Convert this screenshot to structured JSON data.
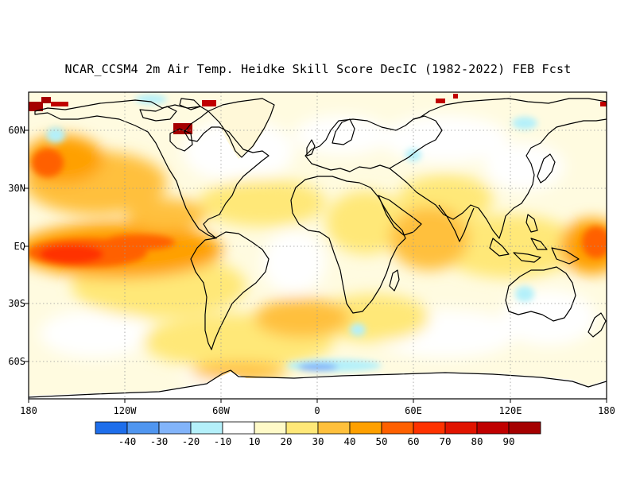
{
  "title": "NCAR_CCSM4 2m Air Temp. Heidke Skill Score DecIC (1982-2022) FEB Fcst",
  "map": {
    "lat_labels": [
      "60N",
      "30N",
      "EQ",
      "30S",
      "60S"
    ],
    "lon_labels": [
      "180",
      "120W",
      "60W",
      "0",
      "60E",
      "120E",
      "180"
    ]
  },
  "colorbar": {
    "labels": [
      "-40",
      "-30",
      "-20",
      "-10",
      "10",
      "20",
      "30",
      "40",
      "50",
      "60",
      "70",
      "80",
      "90"
    ],
    "colors": [
      "#1e6eeb",
      "#5096f0",
      "#82b4fa",
      "#b4f0fa",
      "#ffffff",
      "#fffac8",
      "#ffe878",
      "#ffc03c",
      "#ffa000",
      "#ff6000",
      "#ff3200",
      "#e11400",
      "#c00000",
      "#a50000"
    ]
  }
}
